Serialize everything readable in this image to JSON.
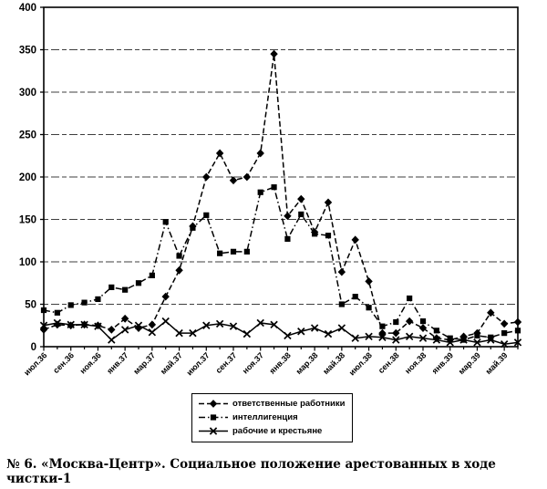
{
  "caption": "№ 6. «Москва-Центр». Социальное положение арестованных в ходе чистки-1",
  "colors": {
    "line": "#000000",
    "background": "#ffffff"
  },
  "chart_data": {
    "type": "line",
    "title": "",
    "xlabel": "",
    "ylabel": "",
    "ylim": [
      0,
      400
    ],
    "ytick_step": 50,
    "grid": "horizontal-dashed",
    "legend_position": "bottom",
    "x_tick_labels": [
      "июл.36",
      "сен.36",
      "ноя.36",
      "янв.37",
      "мар.37",
      "май.37",
      "июл.37",
      "сен.37",
      "ноя.37",
      "янв.38",
      "мар.38",
      "май.38",
      "июл.38",
      "сен.38",
      "ноя.38",
      "янв.39",
      "мар.39",
      "май.39"
    ],
    "categories": [
      "июл.36",
      "авг.36",
      "сен.36",
      "окт.36",
      "ноя.36",
      "дек.36",
      "янв.37",
      "фев.37",
      "мар.37",
      "апр.37",
      "май.37",
      "июн.37",
      "июл.37",
      "авг.37",
      "сен.37",
      "окт.37",
      "ноя.37",
      "дек.37",
      "янв.38",
      "фев.38",
      "мар.38",
      "апр.38",
      "май.38",
      "июн.38",
      "июл.38",
      "авг.38",
      "сен.38",
      "окт.38",
      "ноя.38",
      "дек.38",
      "янв.39",
      "фев.39",
      "мар.39",
      "апр.39",
      "май.39",
      "июн.39"
    ],
    "series": [
      {
        "name": "ответственные работники",
        "marker": "diamond",
        "line": "dashed",
        "values": [
          20,
          26,
          25,
          26,
          25,
          20,
          33,
          22,
          26,
          59,
          90,
          142,
          200,
          228,
          196,
          200,
          228,
          345,
          154,
          174,
          135,
          170,
          88,
          126,
          77,
          16,
          16,
          30,
          22,
          10,
          8,
          12,
          16,
          40,
          27,
          29
        ]
      },
      {
        "name": "интеллигенция",
        "marker": "square",
        "line": "dash-dot",
        "values": [
          43,
          40,
          49,
          52,
          56,
          70,
          67,
          75,
          84,
          147,
          107,
          140,
          155,
          110,
          112,
          112,
          182,
          188,
          127,
          156,
          133,
          131,
          50,
          59,
          46,
          24,
          29,
          57,
          30,
          19,
          10,
          8,
          13,
          11,
          16,
          19
        ]
      },
      {
        "name": "рабочие и крестьяне",
        "marker": "x",
        "line": "solid",
        "values": [
          25,
          28,
          26,
          26,
          24,
          8,
          20,
          25,
          17,
          30,
          16,
          16,
          25,
          27,
          24,
          15,
          28,
          26,
          13,
          18,
          22,
          15,
          22,
          10,
          12,
          11,
          8,
          12,
          10,
          8,
          5,
          8,
          5,
          8,
          3,
          5
        ]
      }
    ]
  }
}
